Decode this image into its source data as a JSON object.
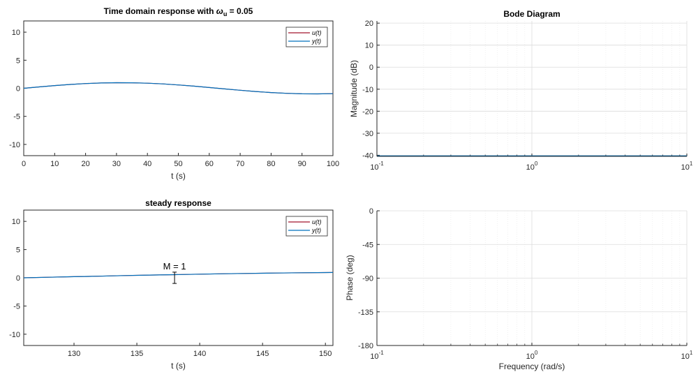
{
  "chart_data": [
    {
      "type": "line",
      "title_main": "Time domain response with ",
      "title_omega": "ω",
      "title_sub": "u",
      "title_rest": " = 0.05",
      "xlabel": "t (s)",
      "ylabel": "",
      "xlim": [
        0,
        100
      ],
      "ylim": [
        -12,
        12
      ],
      "xticks": [
        0,
        10,
        20,
        30,
        40,
        50,
        60,
        70,
        80,
        90,
        100
      ],
      "yticks": [
        -10,
        -5,
        0,
        5,
        10
      ],
      "grid": false,
      "legend_position": "top-right",
      "series": [
        {
          "name": "u(t)",
          "color": "#a2142f",
          "x": [
            0,
            5,
            10,
            15,
            20,
            25,
            30,
            35,
            40,
            45,
            50,
            55,
            60,
            65,
            70,
            75,
            80,
            85,
            90,
            95,
            100
          ],
          "y": [
            0,
            0.25,
            0.48,
            0.68,
            0.84,
            0.95,
            1.0,
            0.98,
            0.91,
            0.78,
            0.6,
            0.38,
            0.14,
            -0.11,
            -0.35,
            -0.57,
            -0.76,
            -0.9,
            -0.98,
            -1.0,
            -0.96
          ]
        },
        {
          "name": "y(t)",
          "color": "#0072bd",
          "x": [
            0,
            5,
            10,
            15,
            20,
            25,
            30,
            35,
            40,
            45,
            50,
            55,
            60,
            65,
            70,
            75,
            80,
            85,
            90,
            95,
            100
          ],
          "y": [
            0,
            0.25,
            0.48,
            0.68,
            0.84,
            0.95,
            1.0,
            0.98,
            0.91,
            0.78,
            0.6,
            0.38,
            0.14,
            -0.11,
            -0.35,
            -0.57,
            -0.76,
            -0.9,
            -0.98,
            -1.0,
            -0.96
          ]
        }
      ]
    },
    {
      "type": "line",
      "title": "steady response",
      "xlabel": "t (s)",
      "ylabel": "",
      "xlim": [
        126,
        150.6
      ],
      "ylim": [
        -12,
        12
      ],
      "xticks": [
        130,
        135,
        140,
        145,
        150
      ],
      "yticks": [
        -10,
        -5,
        0,
        5,
        10
      ],
      "grid": false,
      "legend_position": "top-right",
      "annotation": {
        "text": "M = 1",
        "x": 138,
        "y": 0.6,
        "err_low": -1,
        "err_high": 1
      },
      "series": [
        {
          "name": "u(t)",
          "color": "#a2142f",
          "x": [
            126,
            128,
            130,
            132,
            134,
            136,
            138,
            140,
            142,
            144,
            146,
            148,
            150,
            150.6
          ],
          "y": [
            0.0,
            0.1,
            0.2,
            0.29,
            0.39,
            0.48,
            0.56,
            0.64,
            0.72,
            0.78,
            0.84,
            0.89,
            0.93,
            0.94
          ]
        },
        {
          "name": "y(t)",
          "color": "#0072bd",
          "x": [
            126,
            128,
            130,
            132,
            134,
            136,
            138,
            140,
            142,
            144,
            146,
            148,
            150,
            150.6
          ],
          "y": [
            0.0,
            0.1,
            0.2,
            0.29,
            0.39,
            0.48,
            0.56,
            0.64,
            0.72,
            0.78,
            0.84,
            0.89,
            0.93,
            0.94
          ]
        }
      ]
    },
    {
      "type": "line",
      "title": "Bode Diagram",
      "xlabel": "",
      "ylabel": "Magnitude (dB)",
      "xscale": "log",
      "xlim": [
        0.1,
        10
      ],
      "ylim": [
        -40.5,
        21
      ],
      "xticks_base": [
        "10",
        "10",
        "10"
      ],
      "xticks_exp": [
        "-1",
        "0",
        "1"
      ],
      "yticks": [
        -40,
        -30,
        -20,
        -10,
        0,
        10,
        20
      ],
      "grid": true,
      "series": [
        {
          "color": "#0072bd",
          "x": [
            0.1,
            10
          ],
          "y": [
            -40.3,
            -40.3
          ]
        }
      ]
    },
    {
      "type": "line",
      "title": "",
      "xlabel": "Frequency (rad/s)",
      "ylabel": "Phase (deg)",
      "xscale": "log",
      "xlim": [
        0.1,
        10
      ],
      "ylim": [
        -180,
        0
      ],
      "xticks_base": [
        "10",
        "10",
        "10"
      ],
      "xticks_exp": [
        "-1",
        "0",
        "1"
      ],
      "yticks": [
        -180,
        -135,
        -90,
        -45,
        0
      ],
      "grid": true,
      "series": []
    }
  ]
}
